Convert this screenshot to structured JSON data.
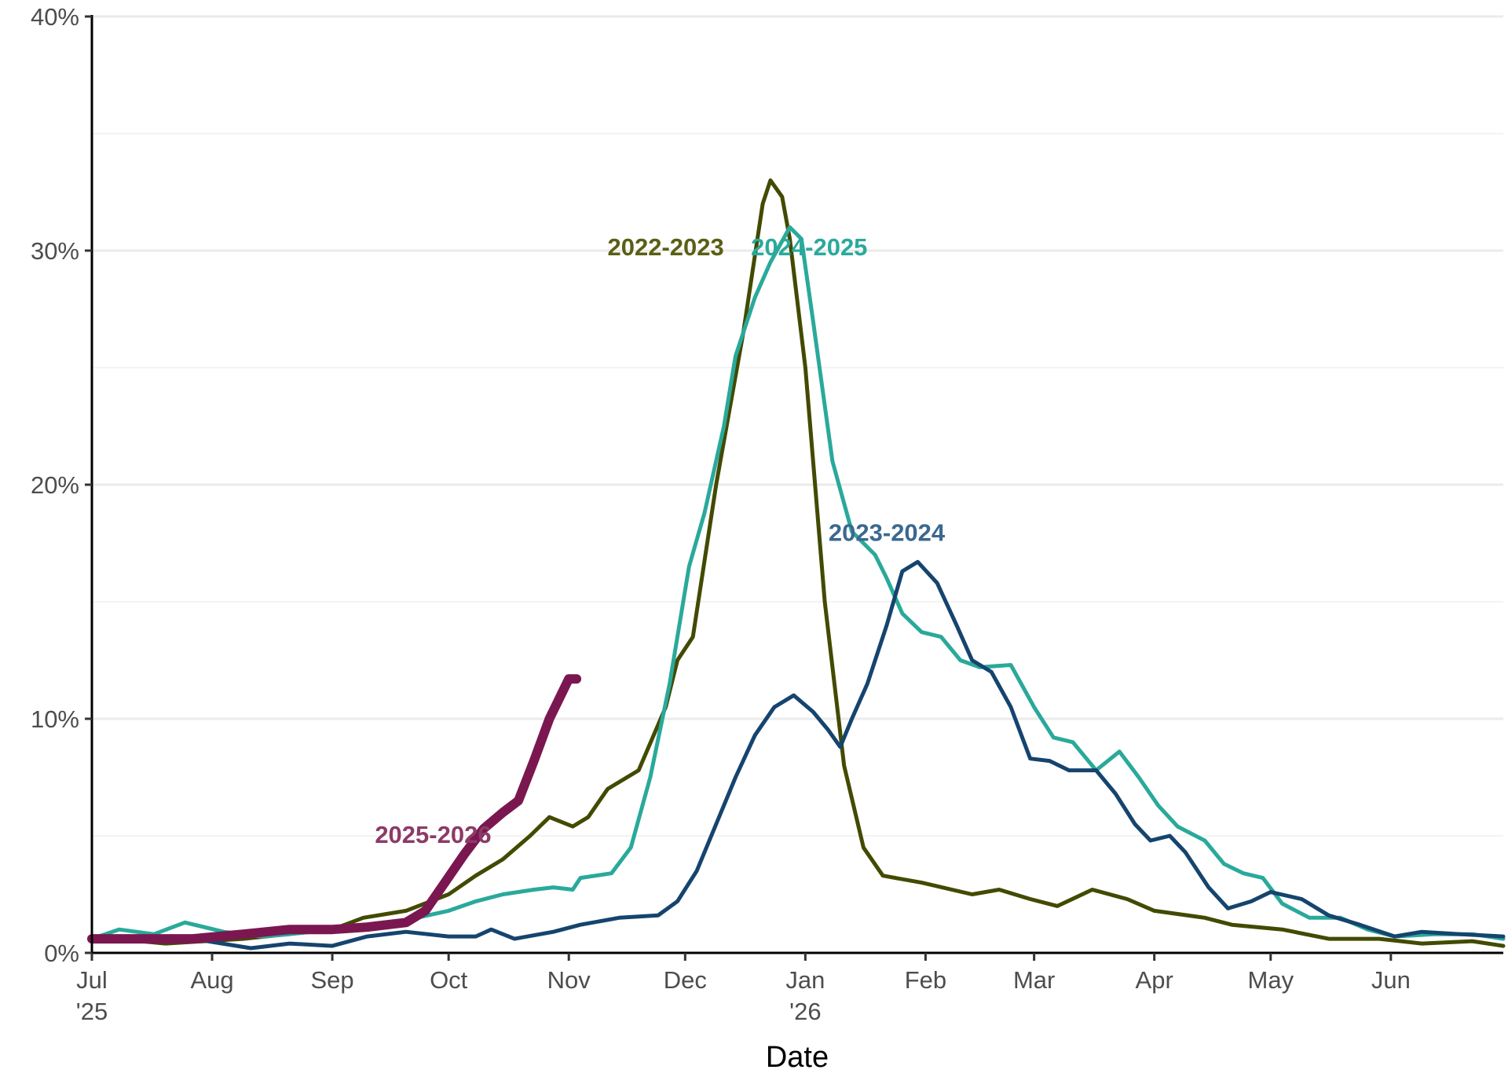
{
  "chart_data": {
    "type": "line",
    "title": "",
    "xlabel": "Date",
    "ylabel": "",
    "xlim": [
      "2025-07-01",
      "2026-06-30"
    ],
    "ylim": [
      0,
      40
    ],
    "y_unit": "%",
    "y_ticks": [
      0,
      10,
      20,
      30,
      40
    ],
    "y_tick_labels": [
      "0%",
      "10%",
      "20%",
      "30%",
      "40%"
    ],
    "x_ticks": [
      {
        "date": "2025-07-01",
        "label": "Jul",
        "sublabel": "'25"
      },
      {
        "date": "2025-08-01",
        "label": "Aug"
      },
      {
        "date": "2025-09-01",
        "label": "Sep"
      },
      {
        "date": "2025-10-01",
        "label": "Oct"
      },
      {
        "date": "2025-11-01",
        "label": "Nov"
      },
      {
        "date": "2025-12-01",
        "label": "Dec"
      },
      {
        "date": "2026-01-01",
        "label": "Jan",
        "sublabel": "'26"
      },
      {
        "date": "2026-02-01",
        "label": "Feb"
      },
      {
        "date": "2026-03-01",
        "label": "Mar"
      },
      {
        "date": "2026-04-01",
        "label": "Apr"
      },
      {
        "date": "2026-05-01",
        "label": "May"
      },
      {
        "date": "2026-06-01",
        "label": "Jun"
      }
    ],
    "grid": "horizontal",
    "legend": "direct labels",
    "series": [
      {
        "name": "2022-2023",
        "color": "#434a00",
        "label_color": "#5a5f14",
        "label_at": [
          "2025-11-26",
          29.8
        ],
        "points": [
          [
            "2025-07-01",
            0.7
          ],
          [
            "2025-07-20",
            0.4
          ],
          [
            "2025-08-09",
            0.6
          ],
          [
            "2025-09-01",
            1.0
          ],
          [
            "2025-09-09",
            1.5
          ],
          [
            "2025-09-20",
            1.8
          ],
          [
            "2025-10-01",
            2.5
          ],
          [
            "2025-10-08",
            3.3
          ],
          [
            "2025-10-15",
            4.0
          ],
          [
            "2025-10-22",
            5.0
          ],
          [
            "2025-10-27",
            5.8
          ],
          [
            "2025-11-02",
            5.4
          ],
          [
            "2025-11-06",
            5.8
          ],
          [
            "2025-11-11",
            7.0
          ],
          [
            "2025-11-19",
            7.8
          ],
          [
            "2025-11-26",
            10.5
          ],
          [
            "2025-11-29",
            12.5
          ],
          [
            "2025-12-03",
            13.5
          ],
          [
            "2025-12-09",
            20.0
          ],
          [
            "2025-12-16",
            26.5
          ],
          [
            "2025-12-21",
            32.0
          ],
          [
            "2025-12-23",
            33.0
          ],
          [
            "2025-12-26",
            32.3
          ],
          [
            "2025-12-28",
            30.5
          ],
          [
            "2026-01-01",
            25.0
          ],
          [
            "2026-01-06",
            15.0
          ],
          [
            "2026-01-11",
            8.0
          ],
          [
            "2026-01-16",
            4.5
          ],
          [
            "2026-01-21",
            3.3
          ],
          [
            "2026-01-31",
            3.0
          ],
          [
            "2026-02-13",
            2.5
          ],
          [
            "2026-02-20",
            2.7
          ],
          [
            "2026-02-28",
            2.3
          ],
          [
            "2026-03-07",
            2.0
          ],
          [
            "2026-03-16",
            2.7
          ],
          [
            "2026-03-25",
            2.3
          ],
          [
            "2026-04-01",
            1.8
          ],
          [
            "2026-04-14",
            1.5
          ],
          [
            "2026-04-21",
            1.2
          ],
          [
            "2026-05-04",
            1.0
          ],
          [
            "2026-05-16",
            0.6
          ],
          [
            "2026-05-29",
            0.6
          ],
          [
            "2026-06-09",
            0.4
          ],
          [
            "2026-06-22",
            0.5
          ],
          [
            "2026-06-30",
            0.3
          ]
        ]
      },
      {
        "name": "2024-2025",
        "color": "#2aa99b",
        "label_color": "#2aa99b",
        "label_at": [
          "2026-01-02",
          29.8
        ],
        "points": [
          [
            "2025-07-01",
            0.6
          ],
          [
            "2025-07-08",
            1.0
          ],
          [
            "2025-07-17",
            0.8
          ],
          [
            "2025-07-25",
            1.3
          ],
          [
            "2025-08-04",
            0.9
          ],
          [
            "2025-08-14",
            0.7
          ],
          [
            "2025-08-21",
            0.8
          ],
          [
            "2025-09-01",
            1.0
          ],
          [
            "2025-09-10",
            1.2
          ],
          [
            "2025-09-20",
            1.4
          ],
          [
            "2025-10-01",
            1.8
          ],
          [
            "2025-10-08",
            2.2
          ],
          [
            "2025-10-15",
            2.5
          ],
          [
            "2025-10-23",
            2.7
          ],
          [
            "2025-10-28",
            2.8
          ],
          [
            "2025-11-02",
            2.7
          ],
          [
            "2025-11-04",
            3.2
          ],
          [
            "2025-11-12",
            3.4
          ],
          [
            "2025-11-17",
            4.5
          ],
          [
            "2025-11-22",
            7.5
          ],
          [
            "2025-11-27",
            11.5
          ],
          [
            "2025-12-02",
            16.5
          ],
          [
            "2025-12-06",
            18.8
          ],
          [
            "2025-12-11",
            22.5
          ],
          [
            "2025-12-14",
            25.5
          ],
          [
            "2025-12-19",
            28.0
          ],
          [
            "2025-12-23",
            29.5
          ],
          [
            "2025-12-28",
            31.0
          ],
          [
            "2025-12-31",
            30.5
          ],
          [
            "2026-01-03",
            27.0
          ],
          [
            "2026-01-08",
            21.0
          ],
          [
            "2026-01-13",
            18.0
          ],
          [
            "2026-01-19",
            17.0
          ],
          [
            "2026-01-22",
            16.0
          ],
          [
            "2026-01-26",
            14.5
          ],
          [
            "2026-01-31",
            13.7
          ],
          [
            "2026-02-05",
            13.5
          ],
          [
            "2026-02-10",
            12.5
          ],
          [
            "2026-02-15",
            12.2
          ],
          [
            "2026-02-23",
            12.3
          ],
          [
            "2026-03-01",
            10.5
          ],
          [
            "2026-03-06",
            9.2
          ],
          [
            "2026-03-11",
            9.0
          ],
          [
            "2026-03-17",
            7.8
          ],
          [
            "2026-03-23",
            8.6
          ],
          [
            "2026-03-28",
            7.5
          ],
          [
            "2026-04-02",
            6.3
          ],
          [
            "2026-04-07",
            5.4
          ],
          [
            "2026-04-14",
            4.8
          ],
          [
            "2026-04-19",
            3.8
          ],
          [
            "2026-04-24",
            3.4
          ],
          [
            "2026-04-29",
            3.2
          ],
          [
            "2026-05-04",
            2.1
          ],
          [
            "2026-05-11",
            1.5
          ],
          [
            "2026-05-19",
            1.5
          ],
          [
            "2026-05-26",
            1.0
          ],
          [
            "2026-06-02",
            0.7
          ],
          [
            "2026-06-12",
            0.8
          ],
          [
            "2026-06-22",
            0.8
          ],
          [
            "2026-06-30",
            0.6
          ]
        ]
      },
      {
        "name": "2023-2024",
        "color": "#15446e",
        "label_color": "#3a6890",
        "label_at": [
          "2026-01-22",
          17.6
        ],
        "points": [
          [
            "2025-07-01",
            0.5
          ],
          [
            "2025-07-15",
            0.7
          ],
          [
            "2025-07-27",
            0.6
          ],
          [
            "2025-08-11",
            0.2
          ],
          [
            "2025-08-21",
            0.4
          ],
          [
            "2025-09-01",
            0.3
          ],
          [
            "2025-09-10",
            0.7
          ],
          [
            "2025-09-20",
            0.9
          ],
          [
            "2025-10-01",
            0.7
          ],
          [
            "2025-10-08",
            0.7
          ],
          [
            "2025-10-12",
            1.0
          ],
          [
            "2025-10-18",
            0.6
          ],
          [
            "2025-10-28",
            0.9
          ],
          [
            "2025-11-04",
            1.2
          ],
          [
            "2025-11-14",
            1.5
          ],
          [
            "2025-11-24",
            1.6
          ],
          [
            "2025-11-29",
            2.2
          ],
          [
            "2025-12-04",
            3.5
          ],
          [
            "2025-12-09",
            5.5
          ],
          [
            "2025-12-14",
            7.5
          ],
          [
            "2025-12-19",
            9.3
          ],
          [
            "2025-12-24",
            10.5
          ],
          [
            "2025-12-29",
            11.0
          ],
          [
            "2026-01-03",
            10.3
          ],
          [
            "2026-01-07",
            9.5
          ],
          [
            "2026-01-10",
            8.8
          ],
          [
            "2026-01-13",
            10.0
          ],
          [
            "2026-01-17",
            11.5
          ],
          [
            "2026-01-22",
            14.0
          ],
          [
            "2026-01-26",
            16.3
          ],
          [
            "2026-01-30",
            16.7
          ],
          [
            "2026-02-04",
            15.8
          ],
          [
            "2026-02-09",
            14.0
          ],
          [
            "2026-02-13",
            12.5
          ],
          [
            "2026-02-18",
            12.0
          ],
          [
            "2026-02-23",
            10.5
          ],
          [
            "2026-02-28",
            8.3
          ],
          [
            "2026-03-05",
            8.2
          ],
          [
            "2026-03-10",
            7.8
          ],
          [
            "2026-03-17",
            7.8
          ],
          [
            "2026-03-22",
            6.8
          ],
          [
            "2026-03-27",
            5.5
          ],
          [
            "2026-03-31",
            4.8
          ],
          [
            "2026-04-05",
            5.0
          ],
          [
            "2026-04-09",
            4.3
          ],
          [
            "2026-04-15",
            2.8
          ],
          [
            "2026-04-20",
            1.9
          ],
          [
            "2026-04-26",
            2.2
          ],
          [
            "2026-05-01",
            2.6
          ],
          [
            "2026-05-09",
            2.3
          ],
          [
            "2026-05-16",
            1.6
          ],
          [
            "2026-05-24",
            1.2
          ],
          [
            "2026-06-02",
            0.7
          ],
          [
            "2026-06-09",
            0.9
          ],
          [
            "2026-06-19",
            0.8
          ],
          [
            "2026-06-30",
            0.7
          ]
        ]
      },
      {
        "name": "2025-2026",
        "color": "#7b1750",
        "label_color": "#8c3a68",
        "label_at": [
          "2025-09-27",
          4.7
        ],
        "points": [
          [
            "2025-07-01",
            0.6
          ],
          [
            "2025-07-15",
            0.6
          ],
          [
            "2025-07-27",
            0.6
          ],
          [
            "2025-08-09",
            0.8
          ],
          [
            "2025-08-21",
            1.0
          ],
          [
            "2025-09-01",
            1.0
          ],
          [
            "2025-09-10",
            1.1
          ],
          [
            "2025-09-20",
            1.3
          ],
          [
            "2025-09-25",
            1.8
          ],
          [
            "2025-09-30",
            3.0
          ],
          [
            "2025-10-05",
            4.2
          ],
          [
            "2025-10-10",
            5.3
          ],
          [
            "2025-10-15",
            6.0
          ],
          [
            "2025-10-19",
            6.5
          ],
          [
            "2025-10-23",
            8.2
          ],
          [
            "2025-10-27",
            10.0
          ],
          [
            "2025-11-01",
            11.7
          ],
          [
            "2025-11-03",
            11.7
          ]
        ]
      }
    ]
  }
}
